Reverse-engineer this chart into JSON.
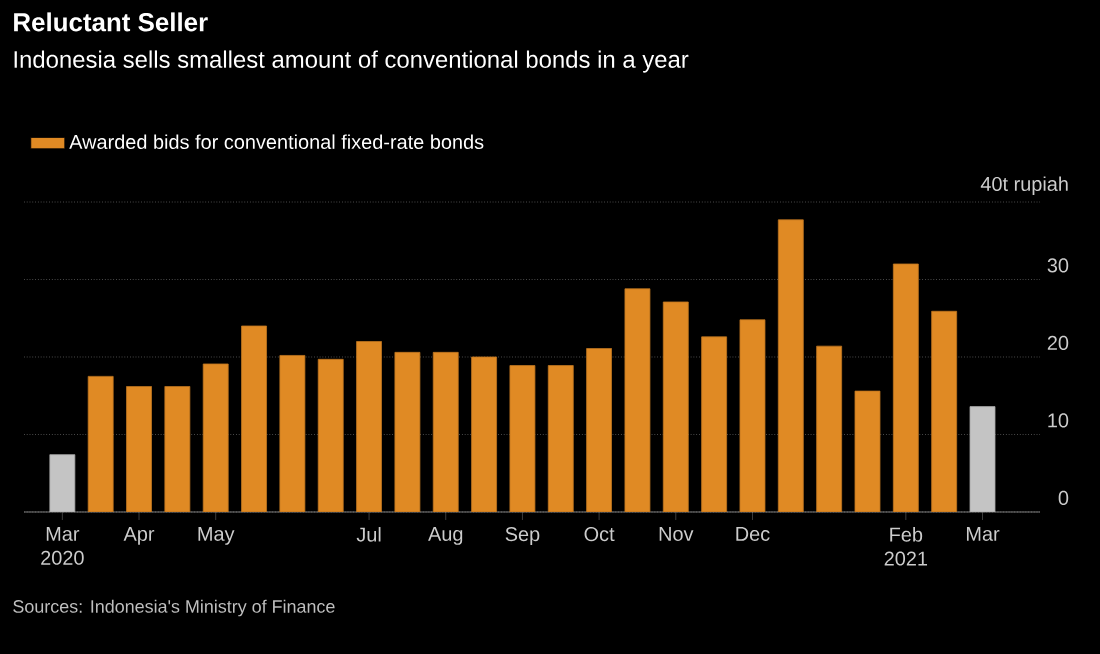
{
  "chart_data": {
    "type": "bar",
    "title": "Reluctant Seller",
    "subtitle": "Indonesia sells smallest amount of conventional bonds in a year",
    "categories": [
      "Mar 2020",
      null,
      "Apr",
      null,
      "May",
      null,
      null,
      null,
      "Jul",
      null,
      "Aug",
      null,
      "Sep",
      null,
      "Oct",
      null,
      "Nov",
      null,
      "Dec",
      null,
      null,
      null,
      "Feb 2021",
      null,
      "Mar"
    ],
    "series": [
      {
        "name": "Awarded bids for conventional fixed-rate bonds",
        "color": "#e08a24",
        "colors": [
          "#c4c4c4",
          "#e08a24",
          "#e08a24",
          "#e08a24",
          "#e08a24",
          "#e08a24",
          "#e08a24",
          "#e08a24",
          "#e08a24",
          "#e08a24",
          "#e08a24",
          "#e08a24",
          "#e08a24",
          "#e08a24",
          "#e08a24",
          "#e08a24",
          "#e08a24",
          "#e08a24",
          "#e08a24",
          "#e08a24",
          "#e08a24",
          "#e08a24",
          "#e08a24",
          "#e08a24",
          "#c4c4c4"
        ],
        "values": [
          7.4,
          17.5,
          16.2,
          16.2,
          19.1,
          24.0,
          20.2,
          19.7,
          22.0,
          20.6,
          20.6,
          20.0,
          18.9,
          18.9,
          21.1,
          28.8,
          27.1,
          22.6,
          24.8,
          37.7,
          21.4,
          15.6,
          32.0,
          25.9,
          13.6
        ]
      }
    ],
    "ylim": [
      0,
      40
    ],
    "yticks": [
      0,
      10,
      20,
      30,
      {
        "value": 40,
        "label": "40t rupiah"
      }
    ],
    "grid": "y",
    "legend": "top left",
    "annotations": [
      "Sources: Indonesia's Ministry of Finance"
    ]
  }
}
